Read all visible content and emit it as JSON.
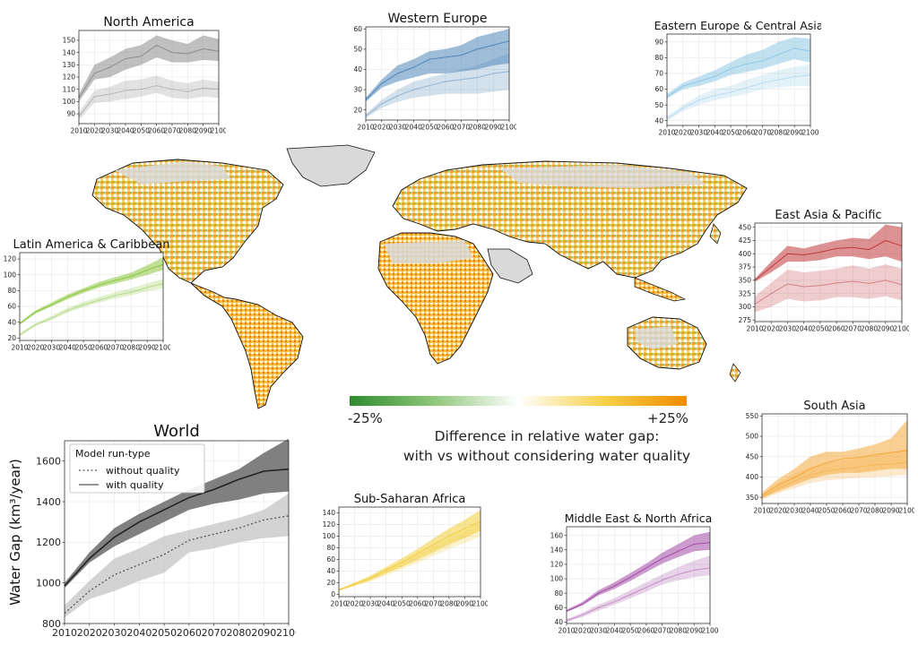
{
  "colorbar": {
    "min_label": "-25%",
    "max_label": "+25%",
    "title_line1": "Difference in relative water gap:",
    "title_line2": "with vs without considering water quality",
    "colors": [
      "#2e8b2e",
      "#8fc77a",
      "#ffffff",
      "#f6d24a",
      "#f08c00"
    ]
  },
  "map": {
    "land_color": "#f4ddb0",
    "nodata_color": "#d9d9d9",
    "coast_color": "#111111"
  },
  "chart_data": [
    {
      "id": "world",
      "type": "area",
      "title": "World",
      "ylabel": "Water Gap (km³/year)",
      "color": "#555555",
      "band_color_with": "#6a6a6a",
      "band_color_without": "#c4c4c4",
      "legend": {
        "title": "Model run-type",
        "without": "without quality",
        "with": "with quality",
        "placement": "top-left"
      },
      "x": [
        2010,
        2020,
        2030,
        2040,
        2050,
        2060,
        2070,
        2080,
        2090,
        2100
      ],
      "ylim": [
        800,
        1700
      ],
      "yticks": [
        800,
        1000,
        1200,
        1400,
        1600
      ],
      "series": [
        {
          "name": "with quality",
          "values": [
            985,
            1120,
            1225,
            1300,
            1360,
            1420,
            1460,
            1510,
            1550,
            1560
          ],
          "lower": [
            975,
            1100,
            1180,
            1240,
            1300,
            1360,
            1390,
            1410,
            1440,
            1450
          ],
          "upper": [
            1000,
            1150,
            1270,
            1340,
            1400,
            1460,
            1510,
            1560,
            1640,
            1710
          ]
        },
        {
          "name": "without quality",
          "values": [
            850,
            960,
            1040,
            1090,
            1140,
            1210,
            1240,
            1270,
            1310,
            1330
          ],
          "lower": [
            830,
            920,
            960,
            1010,
            1050,
            1150,
            1170,
            1200,
            1220,
            1230
          ],
          "upper": [
            890,
            1010,
            1120,
            1170,
            1230,
            1260,
            1290,
            1320,
            1360,
            1440
          ]
        }
      ]
    },
    {
      "id": "north-america",
      "type": "area",
      "title": "North America",
      "color": "#8c8c8c",
      "x": [
        2010,
        2020,
        2030,
        2040,
        2050,
        2060,
        2070,
        2080,
        2090,
        2100
      ],
      "ylim": [
        82,
        158
      ],
      "yticks": [
        90,
        100,
        110,
        120,
        130,
        140,
        150
      ],
      "series": [
        {
          "name": "with quality",
          "values": [
            103,
            123,
            128,
            135,
            137,
            146,
            140,
            139,
            143,
            141
          ],
          "lower": [
            100,
            118,
            120,
            126,
            130,
            136,
            132,
            132,
            134,
            133
          ],
          "upper": [
            106,
            130,
            136,
            143,
            146,
            154,
            150,
            147,
            154,
            151
          ]
        },
        {
          "name": "without quality",
          "values": [
            88,
            104,
            106,
            109,
            110,
            113,
            110,
            108,
            111,
            110
          ],
          "lower": [
            85,
            99,
            100,
            102,
            104,
            107,
            103,
            102,
            104,
            103
          ],
          "upper": [
            91,
            109,
            112,
            117,
            118,
            121,
            117,
            115,
            118,
            116
          ]
        }
      ]
    },
    {
      "id": "western-europe",
      "type": "area",
      "title": "Western Europe",
      "color": "#4f86b8",
      "x": [
        2010,
        2020,
        2030,
        2040,
        2050,
        2060,
        2070,
        2080,
        2090,
        2100
      ],
      "ylim": [
        15,
        61
      ],
      "yticks": [
        20,
        30,
        40,
        50,
        60
      ],
      "series": [
        {
          "name": "with quality",
          "values": [
            25,
            33,
            38,
            41,
            45,
            46,
            47,
            50,
            52,
            54
          ],
          "lower": [
            24,
            31,
            34,
            36,
            38,
            38,
            39,
            40,
            42,
            43
          ],
          "upper": [
            26,
            35,
            42,
            45,
            49,
            50,
            52,
            56,
            58,
            60
          ]
        },
        {
          "name": "without quality",
          "values": [
            17,
            23,
            27,
            30,
            32,
            34,
            35,
            36,
            38,
            39
          ],
          "lower": [
            16,
            21,
            24,
            26,
            27,
            28,
            28,
            28,
            29,
            30
          ],
          "upper": [
            18,
            25,
            30,
            34,
            36,
            38,
            40,
            42,
            45,
            48
          ]
        }
      ]
    },
    {
      "id": "eastern-europe-central-asia",
      "type": "area",
      "title": "Eastern Europe & Central Asia",
      "color": "#8ec9e6",
      "x": [
        2010,
        2020,
        2030,
        2040,
        2050,
        2060,
        2070,
        2080,
        2090,
        2100
      ],
      "ylim": [
        37,
        95
      ],
      "yticks": [
        40,
        50,
        60,
        70,
        80,
        90
      ],
      "series": [
        {
          "name": "with quality",
          "values": [
            55,
            62,
            65,
            68,
            73,
            76,
            78,
            82,
            86,
            84
          ],
          "lower": [
            54,
            60,
            62,
            65,
            69,
            71,
            73,
            76,
            79,
            77
          ],
          "upper": [
            57,
            64,
            68,
            72,
            77,
            82,
            85,
            90,
            93,
            92
          ]
        },
        {
          "name": "without quality",
          "values": [
            41,
            48,
            53,
            56,
            58,
            61,
            64,
            66,
            68,
            69
          ],
          "lower": [
            40,
            46,
            50,
            53,
            55,
            57,
            60,
            61,
            62,
            62
          ],
          "upper": [
            43,
            50,
            56,
            60,
            62,
            66,
            69,
            72,
            74,
            76
          ]
        }
      ]
    },
    {
      "id": "latin-america-caribbean",
      "type": "area",
      "title": "Latin America & Caribbean",
      "color": "#8cc63e",
      "x": [
        2010,
        2020,
        2030,
        2040,
        2050,
        2060,
        2070,
        2080,
        2090,
        2100
      ],
      "ylim": [
        17,
        128
      ],
      "yticks": [
        20,
        40,
        60,
        80,
        100,
        120
      ],
      "series": [
        {
          "name": "with quality",
          "values": [
            38,
            53,
            62,
            72,
            80,
            87,
            93,
            98,
            106,
            113
          ],
          "lower": [
            37,
            51,
            60,
            69,
            77,
            84,
            89,
            94,
            100,
            106
          ],
          "upper": [
            40,
            55,
            65,
            75,
            83,
            91,
            97,
            103,
            112,
            122
          ]
        },
        {
          "name": "without quality",
          "values": [
            24,
            37,
            45,
            55,
            62,
            68,
            74,
            78,
            84,
            89
          ],
          "lower": [
            22,
            35,
            43,
            52,
            59,
            65,
            70,
            74,
            79,
            83
          ],
          "upper": [
            26,
            39,
            48,
            58,
            66,
            72,
            78,
            83,
            89,
            95
          ]
        }
      ]
    },
    {
      "id": "east-asia-pacific",
      "type": "area",
      "title": "East Asia & Pacific",
      "color": "#c0393b",
      "x": [
        2010,
        2020,
        2030,
        2040,
        2050,
        2060,
        2070,
        2080,
        2090,
        2100
      ],
      "ylim": [
        272,
        458
      ],
      "yticks": [
        275,
        300,
        325,
        350,
        375,
        400,
        425,
        450
      ],
      "series": [
        {
          "name": "with quality",
          "values": [
            350,
            375,
            400,
            398,
            403,
            410,
            412,
            408,
            425,
            415
          ],
          "lower": [
            347,
            365,
            385,
            385,
            388,
            395,
            395,
            390,
            395,
            385
          ],
          "upper": [
            353,
            385,
            415,
            410,
            418,
            425,
            430,
            428,
            455,
            450
          ]
        },
        {
          "name": "without quality",
          "values": [
            305,
            325,
            343,
            338,
            340,
            345,
            348,
            344,
            350,
            342
          ],
          "lower": [
            290,
            300,
            315,
            310,
            312,
            318,
            318,
            315,
            320,
            312
          ],
          "upper": [
            320,
            345,
            370,
            365,
            368,
            372,
            378,
            372,
            380,
            372
          ]
        }
      ]
    },
    {
      "id": "south-asia",
      "type": "area",
      "title": "South Asia",
      "color": "#f4a93b",
      "x": [
        2010,
        2020,
        2030,
        2040,
        2050,
        2060,
        2070,
        2080,
        2090,
        2100
      ],
      "ylim": [
        335,
        555
      ],
      "yticks": [
        350,
        400,
        450,
        500,
        550
      ],
      "series": [
        {
          "name": "with quality",
          "values": [
            355,
            380,
            398,
            420,
            435,
            445,
            448,
            455,
            460,
            465
          ],
          "lower": [
            348,
            365,
            380,
            395,
            405,
            410,
            410,
            415,
            420,
            420
          ],
          "upper": [
            362,
            395,
            420,
            450,
            462,
            462,
            470,
            480,
            495,
            540
          ]
        },
        {
          "name": "without quality",
          "values": [
            350,
            372,
            390,
            405,
            415,
            420,
            425,
            430,
            432,
            436
          ],
          "lower": [
            345,
            360,
            372,
            385,
            392,
            395,
            398,
            400,
            402,
            405
          ],
          "upper": [
            356,
            385,
            408,
            425,
            435,
            440,
            448,
            455,
            460,
            470
          ]
        }
      ]
    },
    {
      "id": "sub-saharan-africa",
      "type": "area",
      "title": "Sub-Saharan Africa",
      "color": "#f2cd3a",
      "x": [
        2010,
        2020,
        2030,
        2040,
        2050,
        2060,
        2070,
        2080,
        2090,
        2100
      ],
      "ylim": [
        -4,
        150
      ],
      "yticks": [
        0,
        20,
        40,
        60,
        80,
        100,
        120,
        140
      ],
      "series": [
        {
          "name": "with quality",
          "values": [
            8,
            18,
            28,
            42,
            55,
            70,
            85,
            100,
            113,
            125
          ],
          "lower": [
            7,
            16,
            25,
            37,
            48,
            61,
            74,
            87,
            98,
            110
          ],
          "upper": [
            9,
            20,
            32,
            47,
            62,
            78,
            96,
            113,
            128,
            145
          ]
        },
        {
          "name": "without quality",
          "values": [
            7,
            16,
            25,
            37,
            48,
            60,
            73,
            86,
            98,
            110
          ],
          "lower": [
            6,
            14,
            22,
            33,
            43,
            54,
            66,
            78,
            88,
            100
          ],
          "upper": [
            8,
            18,
            28,
            41,
            54,
            68,
            82,
            96,
            110,
            122
          ]
        }
      ]
    },
    {
      "id": "middle-east-north-africa",
      "type": "area",
      "title": "Middle East & North Africa",
      "color": "#a24ba6",
      "x": [
        2010,
        2020,
        2030,
        2040,
        2050,
        2060,
        2070,
        2080,
        2090,
        2100
      ],
      "ylim": [
        38,
        172
      ],
      "yticks": [
        40,
        60,
        80,
        100,
        120,
        140,
        160
      ],
      "series": [
        {
          "name": "with quality",
          "values": [
            55,
            65,
            80,
            90,
            102,
            115,
            128,
            138,
            148,
            150
          ],
          "lower": [
            54,
            63,
            77,
            86,
            97,
            109,
            121,
            130,
            138,
            140
          ],
          "upper": [
            57,
            68,
            84,
            95,
            108,
            121,
            136,
            148,
            160,
            165
          ]
        },
        {
          "name": "without quality",
          "values": [
            42,
            50,
            60,
            68,
            78,
            88,
            98,
            106,
            112,
            115
          ],
          "lower": [
            40,
            47,
            56,
            64,
            73,
            82,
            92,
            98,
            102,
            105
          ],
          "upper": [
            44,
            53,
            64,
            73,
            84,
            95,
            106,
            116,
            125,
            132
          ]
        }
      ]
    }
  ]
}
